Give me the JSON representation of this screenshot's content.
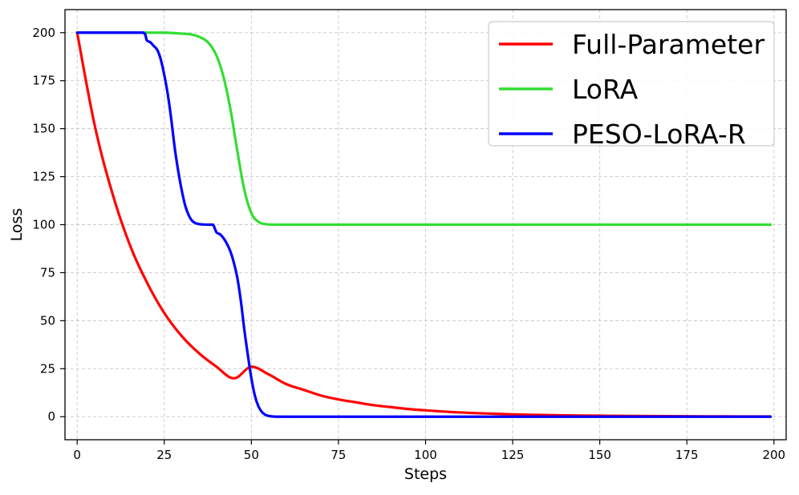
{
  "chart_data": {
    "type": "line",
    "title": "",
    "xlabel": "Steps",
    "ylabel": "Loss",
    "xlim": [
      -3.5,
      203.5
    ],
    "ylim": [
      -12,
      212
    ],
    "x_ticks": [
      0,
      25,
      50,
      75,
      100,
      125,
      150,
      175,
      200
    ],
    "y_ticks": [
      0,
      25,
      50,
      75,
      100,
      125,
      150,
      175,
      200
    ],
    "grid": true,
    "legend_position": "top-right",
    "series": [
      {
        "name": "Full-Parameter",
        "color": "#ff0000",
        "points": [
          [
            0,
            200
          ],
          [
            5,
            152
          ],
          [
            10,
            117
          ],
          [
            15,
            90
          ],
          [
            20,
            70
          ],
          [
            25,
            54
          ],
          [
            30,
            42
          ],
          [
            35,
            33
          ],
          [
            40,
            26
          ],
          [
            45,
            20
          ],
          [
            50,
            26
          ],
          [
            55,
            22
          ],
          [
            60,
            17
          ],
          [
            65,
            14
          ],
          [
            70,
            11
          ],
          [
            75,
            9
          ],
          [
            80,
            7.5
          ],
          [
            85,
            6
          ],
          [
            90,
            5
          ],
          [
            95,
            4
          ],
          [
            100,
            3.3
          ],
          [
            110,
            2.2
          ],
          [
            120,
            1.5
          ],
          [
            130,
            1
          ],
          [
            140,
            0.7
          ],
          [
            150,
            0.5
          ],
          [
            160,
            0.35
          ],
          [
            170,
            0.25
          ],
          [
            180,
            0.18
          ],
          [
            190,
            0.12
          ],
          [
            199,
            0.1
          ]
        ]
      },
      {
        "name": "LoRA",
        "color": "#33dd33",
        "points": [
          [
            0,
            200
          ],
          [
            5,
            200
          ],
          [
            10,
            200
          ],
          [
            15,
            200
          ],
          [
            20,
            200
          ],
          [
            25,
            200
          ],
          [
            30,
            199.5
          ],
          [
            33,
            199
          ],
          [
            36,
            197
          ],
          [
            38,
            194
          ],
          [
            40,
            188
          ],
          [
            42,
            177
          ],
          [
            44,
            160
          ],
          [
            46,
            138
          ],
          [
            48,
            118
          ],
          [
            50,
            106
          ],
          [
            52,
            101.5
          ],
          [
            54,
            100.3
          ],
          [
            56,
            100.05
          ],
          [
            60,
            100
          ],
          [
            80,
            100
          ],
          [
            100,
            100
          ],
          [
            120,
            100
          ],
          [
            140,
            100
          ],
          [
            160,
            100
          ],
          [
            180,
            100
          ],
          [
            199,
            100
          ]
        ]
      },
      {
        "name": "PESO-LoRA-R",
        "color": "#0000ff",
        "points": [
          [
            0,
            200
          ],
          [
            5,
            200
          ],
          [
            10,
            200
          ],
          [
            15,
            200
          ],
          [
            19,
            200
          ],
          [
            20,
            196
          ],
          [
            21,
            195
          ],
          [
            22,
            193
          ],
          [
            23,
            191
          ],
          [
            24,
            186
          ],
          [
            25,
            178
          ],
          [
            26,
            168
          ],
          [
            27,
            155
          ],
          [
            28,
            140
          ],
          [
            29,
            128
          ],
          [
            30,
            118
          ],
          [
            31,
            110
          ],
          [
            32,
            105
          ],
          [
            33,
            102
          ],
          [
            34,
            100.8
          ],
          [
            35,
            100.3
          ],
          [
            36,
            100.1
          ],
          [
            38,
            100
          ],
          [
            39,
            100
          ],
          [
            40,
            96
          ],
          [
            41,
            95
          ],
          [
            42,
            93
          ],
          [
            43,
            90
          ],
          [
            44,
            86
          ],
          [
            45,
            80
          ],
          [
            46,
            72
          ],
          [
            47,
            60
          ],
          [
            48,
            45
          ],
          [
            49,
            32
          ],
          [
            50,
            20
          ],
          [
            51,
            11
          ],
          [
            52,
            5.5
          ],
          [
            53,
            2.5
          ],
          [
            54,
            1
          ],
          [
            55,
            0.4
          ],
          [
            56,
            0.15
          ],
          [
            58,
            0
          ],
          [
            70,
            0
          ],
          [
            100,
            0
          ],
          [
            130,
            0
          ],
          [
            160,
            0
          ],
          [
            199,
            0
          ]
        ]
      }
    ]
  }
}
